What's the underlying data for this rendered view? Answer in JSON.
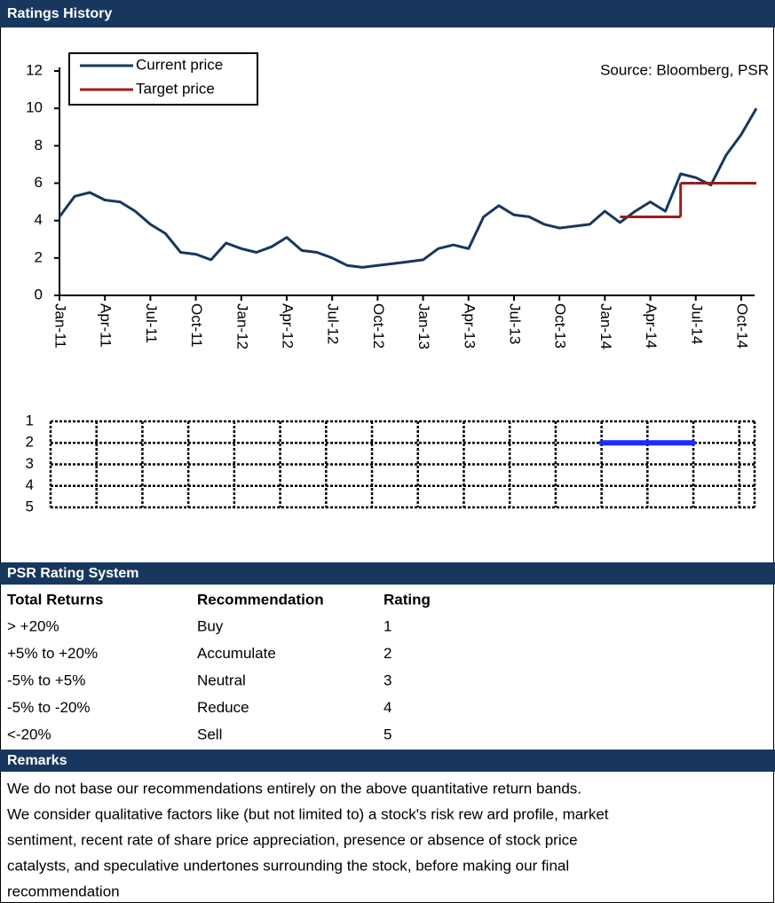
{
  "header": {
    "title": "Ratings History"
  },
  "chart_data": [
    {
      "type": "line",
      "source": "Source: Bloomberg, PSR",
      "categories": [
        "Jan-11",
        null,
        null,
        "Apr-11",
        null,
        null,
        "Jul-11",
        null,
        null,
        "Oct-11",
        null,
        null,
        "Jan-12",
        null,
        null,
        "Apr-12",
        null,
        null,
        "Jul-12",
        null,
        null,
        "Oct-12",
        null,
        null,
        "Jan-13",
        null,
        null,
        "Apr-13",
        null,
        null,
        "Jul-13",
        null,
        null,
        "Oct-13",
        null,
        null,
        "Jan-14",
        null,
        null,
        "Apr-14",
        null,
        null,
        "Jul-14",
        null,
        null,
        "Oct-14",
        null
      ],
      "series": [
        {
          "name": "Current price",
          "color": "#17375e",
          "values": [
            4.2,
            5.3,
            5.5,
            5.1,
            5.0,
            4.5,
            3.8,
            3.3,
            2.3,
            2.2,
            1.9,
            2.8,
            2.5,
            2.3,
            2.6,
            3.1,
            2.4,
            2.3,
            2.0,
            1.6,
            1.5,
            1.6,
            1.7,
            1.8,
            1.9,
            2.5,
            2.7,
            2.5,
            4.2,
            4.8,
            4.3,
            4.2,
            3.8,
            3.6,
            3.7,
            3.8,
            4.5,
            3.9,
            4.5,
            5.0,
            4.5,
            6.5,
            6.3,
            5.9,
            7.5,
            8.6,
            10.0
          ]
        },
        {
          "name": "Target price",
          "color": "#9b1c1c",
          "step": true,
          "values": [
            null,
            null,
            null,
            null,
            null,
            null,
            null,
            null,
            null,
            null,
            null,
            null,
            null,
            null,
            null,
            null,
            null,
            null,
            null,
            null,
            null,
            null,
            null,
            null,
            null,
            null,
            null,
            null,
            null,
            null,
            null,
            null,
            null,
            null,
            null,
            null,
            null,
            null,
            4.2,
            4.2,
            4.2,
            4.2,
            6.0,
            6.0,
            6.0,
            6.0,
            6.0
          ]
        }
      ],
      "ylim": [
        0,
        12
      ],
      "yticks": [
        0,
        2,
        4,
        6,
        8,
        10,
        12
      ],
      "legend": "top-left"
    },
    {
      "type": "line",
      "color": "#1a2cff",
      "grid": true,
      "values": [
        null,
        null,
        null,
        null,
        null,
        null,
        null,
        null,
        null,
        null,
        null,
        null,
        null,
        null,
        null,
        null,
        null,
        null,
        null,
        null,
        null,
        null,
        null,
        null,
        null,
        null,
        null,
        null,
        null,
        null,
        null,
        null,
        null,
        null,
        null,
        null,
        2,
        2,
        2,
        2,
        2,
        2,
        2,
        null,
        null,
        null,
        null
      ],
      "ylim": [
        5,
        1
      ],
      "yticks": [
        1,
        2,
        3,
        4,
        5
      ]
    }
  ],
  "rating_system": {
    "title": "PSR Rating System",
    "columns": [
      "Total Returns",
      "Recommendation",
      "Rating"
    ],
    "rows": [
      [
        "> +20%",
        "Buy",
        "1"
      ],
      [
        "+5% to +20%",
        "Accumulate",
        "2"
      ],
      [
        "-5% to +5%",
        "Neutral",
        "3"
      ],
      [
        "-5% to -20%",
        "Reduce",
        "4"
      ],
      [
        "<-20%",
        "Sell",
        "5"
      ]
    ]
  },
  "remarks": {
    "title": "Remarks",
    "lines": [
      "We do not base our recommendations entirely on the  above quantitative return bands.",
      "We consider qualitative factors like (but not limited to) a stock's risk rew ard profile, market",
      "sentiment, recent rate of share price appreciation, presence or absence of stock price",
      "catalysts, and speculative undertones surrounding the stock, before making our final",
      "recommendation"
    ]
  }
}
